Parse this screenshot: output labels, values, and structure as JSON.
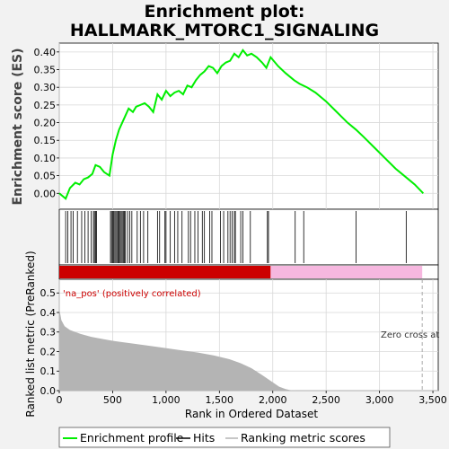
{
  "title_line1": "Enrichment plot:",
  "title_line2": "HALLMARK_MTORC1_SIGNALING",
  "chart_data": [
    {
      "type": "line",
      "name": "enrichment-score-panel",
      "ylabel": "Enrichment score (ES)",
      "xlim": [
        0,
        3550
      ],
      "ylim": [
        -0.045,
        0.425
      ],
      "yticks": [
        "0.00",
        "0.05",
        "0.10",
        "0.15",
        "0.20",
        "0.25",
        "0.30",
        "0.35",
        "0.40"
      ],
      "grid": true,
      "series": [
        {
          "name": "Enrichment profile",
          "color": "#00ee00",
          "x": [
            0,
            60,
            100,
            150,
            190,
            230,
            270,
            310,
            340,
            380,
            420,
            470,
            500,
            530,
            560,
            590,
            620,
            650,
            690,
            720,
            760,
            800,
            840,
            880,
            920,
            960,
            1000,
            1040,
            1080,
            1120,
            1160,
            1200,
            1240,
            1280,
            1320,
            1360,
            1400,
            1440,
            1480,
            1520,
            1560,
            1600,
            1640,
            1680,
            1720,
            1760,
            1800,
            1850,
            1900,
            1940,
            1980,
            2050,
            2120,
            2200,
            2250,
            2320,
            2400,
            2500,
            2600,
            2700,
            2780,
            2850,
            2950,
            3050,
            3150,
            3250,
            3330,
            3410
          ],
          "y": [
            0.0,
            -0.015,
            0.015,
            0.03,
            0.025,
            0.04,
            0.045,
            0.055,
            0.08,
            0.075,
            0.06,
            0.05,
            0.11,
            0.15,
            0.18,
            0.2,
            0.22,
            0.24,
            0.23,
            0.245,
            0.25,
            0.255,
            0.245,
            0.23,
            0.28,
            0.265,
            0.29,
            0.275,
            0.285,
            0.29,
            0.28,
            0.305,
            0.3,
            0.32,
            0.335,
            0.345,
            0.36,
            0.355,
            0.34,
            0.36,
            0.37,
            0.375,
            0.395,
            0.385,
            0.405,
            0.39,
            0.395,
            0.385,
            0.37,
            0.355,
            0.385,
            0.36,
            0.34,
            0.32,
            0.31,
            0.3,
            0.285,
            0.26,
            0.23,
            0.2,
            0.18,
            0.16,
            0.13,
            0.1,
            0.07,
            0.045,
            0.025,
            0.0
          ]
        }
      ]
    },
    {
      "type": "scatter",
      "name": "hits-panel",
      "legend_label": "Hits",
      "x": [
        60,
        80,
        110,
        130,
        170,
        210,
        240,
        270,
        300,
        320,
        330,
        340,
        350,
        480,
        490,
        500,
        510,
        520,
        530,
        540,
        550,
        560,
        570,
        580,
        590,
        600,
        610,
        620,
        640,
        660,
        680,
        730,
        760,
        790,
        830,
        920,
        940,
        990,
        1000,
        1040,
        1080,
        1110,
        1150,
        1210,
        1230,
        1270,
        1300,
        1340,
        1360,
        1410,
        1430,
        1510,
        1540,
        1580,
        1600,
        1620,
        1640,
        1650,
        1700,
        1720,
        1790,
        1950,
        1960,
        2210,
        2290,
        2780,
        3250
      ]
    },
    {
      "type": "area",
      "name": "ranked-metric-panel",
      "xlabel": "Rank in Ordered Dataset",
      "ylabel": "Ranked list metric (PreRanked)",
      "xlim": [
        0,
        3550
      ],
      "ylim": [
        0,
        0.57
      ],
      "xticks": [
        0,
        500,
        1000,
        1500,
        2000,
        2500,
        3000,
        3500
      ],
      "xtick_labels": [
        "0",
        "500",
        "1,000",
        "1,500",
        "2,000",
        "2,500",
        "3,000",
        "3,500"
      ],
      "yticks": [
        "0.0",
        "0.1",
        "0.2",
        "0.3",
        "0.4",
        "0.5"
      ],
      "series": [
        {
          "name": "Ranking metric scores",
          "color": "#b4b4b4",
          "x": [
            0,
            20,
            50,
            100,
            200,
            300,
            400,
            500,
            700,
            900,
            1100,
            1300,
            1450,
            1600,
            1700,
            1800,
            1900,
            1980,
            2060,
            2120,
            2160,
            2220,
            2500,
            3000,
            3410
          ],
          "y": [
            0.42,
            0.36,
            0.33,
            0.31,
            0.29,
            0.275,
            0.265,
            0.255,
            0.24,
            0.225,
            0.21,
            0.195,
            0.18,
            0.16,
            0.14,
            0.115,
            0.08,
            0.05,
            0.02,
            0.008,
            0.003,
            0.0,
            0.0,
            0.0,
            0.0
          ]
        }
      ],
      "zero_cross_x": 3400,
      "annotations": {
        "positive_label": "'na_pos' (positively correlated)",
        "zero_cross_label": "Zero cross at"
      }
    }
  ],
  "legend": {
    "items": [
      {
        "label": "Enrichment profile",
        "color": "#00ee00"
      },
      {
        "label": "Hits",
        "color": "#000000"
      },
      {
        "label": "Ranking metric scores",
        "color": "#b4b4b4"
      }
    ]
  },
  "colors": {
    "profile": "#00ee00",
    "metric_fill": "#b4b4b4",
    "positive_bar": "#cc0000",
    "negative_bar": "#f6b7df",
    "annotation_red": "#cc0000",
    "grid": "#d8d8d8"
  }
}
